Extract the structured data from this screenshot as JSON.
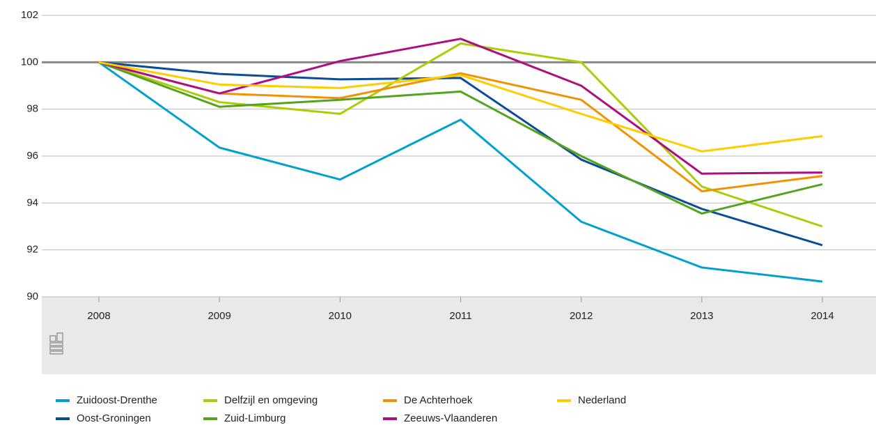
{
  "chart_data": {
    "type": "line",
    "categories": [
      "2008",
      "2009",
      "2010",
      "2011",
      "2012",
      "2013",
      "2014"
    ],
    "series": [
      {
        "name": "Zuidoost-Drenthe",
        "color": "#00a1cd",
        "values": [
          100,
          96.36,
          95.0,
          97.55,
          93.2,
          91.25,
          90.65
        ]
      },
      {
        "name": "Oost-Groningen",
        "color": "#0a4d96",
        "values": [
          100,
          99.5,
          99.27,
          99.33,
          95.85,
          93.75,
          92.2
        ]
      },
      {
        "name": "Delfzijl en omgeving",
        "color": "#afcb05",
        "values": [
          100,
          98.3,
          97.8,
          100.8,
          100,
          94.7,
          93.0
        ]
      },
      {
        "name": "Zuid-Limburg",
        "color": "#53a31d",
        "values": [
          100,
          98.1,
          98.4,
          98.75,
          96.0,
          93.55,
          94.8
        ]
      },
      {
        "name": "De Achterhoek",
        "color": "#f39200",
        "values": [
          100,
          98.67,
          98.47,
          99.53,
          98.4,
          94.5,
          95.15
        ]
      },
      {
        "name": "Zeeuws-Vlaanderen",
        "color": "#af0e80",
        "values": [
          100,
          98.67,
          100.05,
          101.0,
          99.0,
          95.25,
          95.3
        ]
      },
      {
        "name": "Nederland",
        "color": "#ffcc00",
        "values": [
          100,
          99.05,
          98.9,
          99.45,
          97.8,
          96.2,
          96.85
        ]
      }
    ],
    "ylim": [
      90,
      102
    ],
    "yticks": [
      90,
      92,
      94,
      96,
      98,
      100,
      102
    ],
    "grid": true,
    "reference_line": 100
  }
}
